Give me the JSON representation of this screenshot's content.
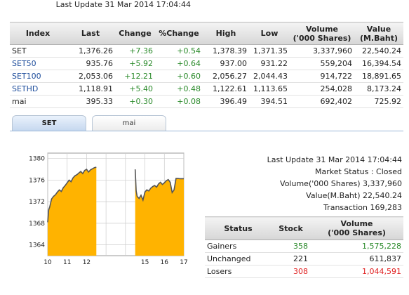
{
  "colors": {
    "up": "#2a8a2a",
    "down": "#e02020",
    "index_link": "#1f4e9c",
    "chart_fill": "#ffb300",
    "chart_line": "#555555"
  },
  "top_update": "Last Update 31 Mar 2014 17:04:44",
  "index_table": {
    "headers": [
      "Index",
      "Last",
      "Change",
      "%Change",
      "High",
      "Low",
      "Volume\n('000 Shares)",
      "Value\n(M.Baht)"
    ],
    "rows": [
      {
        "name": "SET",
        "last": "1,376.26",
        "change": "+7.36",
        "pct": "+0.54",
        "high": "1,378.39",
        "low": "1,371.35",
        "volume": "3,337,960",
        "value": "22,540.24"
      },
      {
        "name": "SET50",
        "last": "935.76",
        "change": "+5.92",
        "pct": "+0.64",
        "high": "937.00",
        "low": "931.22",
        "volume": "559,204",
        "value": "16,394.54"
      },
      {
        "name": "SET100",
        "last": "2,053.06",
        "change": "+12.21",
        "pct": "+0.60",
        "high": "2,056.27",
        "low": "2,044.43",
        "volume": "914,722",
        "value": "18,891.65"
      },
      {
        "name": "SETHD",
        "last": "1,118.91",
        "change": "+5.40",
        "pct": "+0.48",
        "high": "1,122.61",
        "low": "1,113.65",
        "volume": "254,028",
        "value": "8,173.24"
      },
      {
        "name": "mai",
        "last": "395.33",
        "change": "+0.30",
        "pct": "+0.08",
        "high": "396.49",
        "low": "394.51",
        "volume": "692,402",
        "value": "725.92"
      }
    ]
  },
  "tabs": {
    "active": "SET",
    "inactive": "mai"
  },
  "market": {
    "update": "Last Update 31 Mar 2014 17:04:44",
    "status": "Market Status : Closed",
    "volume": "Volume('000 Shares) 3,337,960",
    "value": "Value(M.Baht) 22,540.24",
    "transaction": "Transaction 169,283"
  },
  "status_table": {
    "headers": [
      "Status",
      "Stock",
      "Volume\n('000 Shares)"
    ],
    "rows": [
      {
        "label": "Gainers",
        "stock": "358",
        "volume": "1,575,228",
        "tone": "g"
      },
      {
        "label": "Unchanged",
        "stock": "221",
        "volume": "611,837",
        "tone": ""
      },
      {
        "label": "Losers",
        "stock": "308",
        "volume": "1,044,591",
        "tone": "r"
      }
    ]
  },
  "chart_data": {
    "type": "area",
    "title": "",
    "xlabel": "",
    "ylabel": "",
    "x_ticks": [
      10,
      11,
      12,
      13,
      14,
      15,
      16,
      17
    ],
    "x_tick_labels": [
      "10",
      "11",
      "12",
      "",
      "",
      "15",
      "16",
      "17"
    ],
    "xlim": [
      10,
      17
    ],
    "y_ticks": [
      1364,
      1368,
      1372,
      1376,
      1380
    ],
    "ylim": [
      1362,
      1381
    ],
    "grid": true,
    "session_gap": [
      12.5,
      14.5
    ],
    "series": [
      {
        "x": [
          10.0,
          10.05,
          10.1,
          10.2,
          10.3,
          10.4,
          10.5,
          10.6,
          10.7,
          10.8,
          10.9,
          11.0,
          11.1,
          11.2,
          11.3,
          11.4,
          11.5,
          11.6,
          11.7,
          11.8,
          11.9,
          12.0,
          12.1,
          12.2,
          12.3,
          12.4,
          12.5
        ],
        "y": [
          1368.2,
          1370.5,
          1371.0,
          1372.5,
          1373.0,
          1373.3,
          1373.8,
          1374.2,
          1373.9,
          1374.6,
          1375.0,
          1375.5,
          1376.0,
          1375.7,
          1376.4,
          1376.8,
          1377.0,
          1377.3,
          1377.6,
          1377.2,
          1377.8,
          1378.0,
          1377.5,
          1377.9,
          1378.1,
          1378.3,
          1378.4
        ]
      },
      {
        "x": [
          14.5,
          14.55,
          14.6,
          14.7,
          14.8,
          14.9,
          15.0,
          15.1,
          15.2,
          15.3,
          15.4,
          15.5,
          15.6,
          15.7,
          15.8,
          15.9,
          16.0,
          16.1,
          16.2,
          16.3,
          16.4,
          16.5,
          16.6,
          16.7,
          16.8,
          16.9,
          17.0
        ],
        "y": [
          1378.0,
          1374.0,
          1373.0,
          1372.6,
          1373.2,
          1372.3,
          1373.8,
          1374.2,
          1374.0,
          1374.5,
          1374.8,
          1375.0,
          1374.7,
          1375.3,
          1375.6,
          1375.2,
          1375.5,
          1375.9,
          1376.1,
          1375.6,
          1373.7,
          1374.2,
          1376.3,
          1376.3,
          1376.26,
          1376.26,
          1376.26
        ]
      }
    ]
  }
}
